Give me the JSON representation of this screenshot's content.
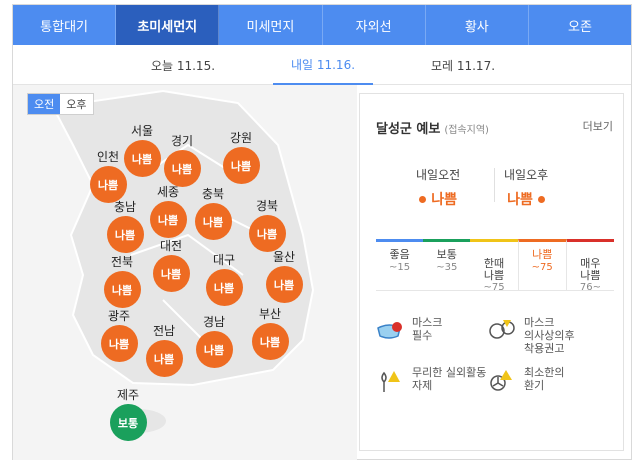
{
  "tabs": [
    "통합대기",
    "초미세먼지",
    "미세먼지",
    "자외선",
    "황사",
    "오존"
  ],
  "days": [
    "오늘 11.15.",
    "내일 11.16.",
    "모레 11.17."
  ],
  "map": {
    "ampm": [
      "오전",
      "오후"
    ],
    "regions": [
      {
        "name": "서울",
        "status": "나쁨"
      },
      {
        "name": "경기",
        "status": "나쁨"
      },
      {
        "name": "강원",
        "status": "나쁨"
      },
      {
        "name": "인천",
        "status": "나쁨"
      },
      {
        "name": "세종",
        "status": "나쁨"
      },
      {
        "name": "충북",
        "status": "나쁨"
      },
      {
        "name": "충남",
        "status": "나쁨"
      },
      {
        "name": "경북",
        "status": "나쁨"
      },
      {
        "name": "대전",
        "status": "나쁨"
      },
      {
        "name": "전북",
        "status": "나쁨"
      },
      {
        "name": "대구",
        "status": "나쁨"
      },
      {
        "name": "울산",
        "status": "나쁨"
      },
      {
        "name": "광주",
        "status": "나쁨"
      },
      {
        "name": "전남",
        "status": "나쁨"
      },
      {
        "name": "경남",
        "status": "나쁨"
      },
      {
        "name": "부산",
        "status": "나쁨"
      },
      {
        "name": "제주",
        "status": "보통"
      }
    ]
  },
  "forecast": {
    "title": "달성군 예보",
    "subtitle": "(접속지역)",
    "more": "더보기",
    "am_label": "내일오전",
    "am_value": "나쁨",
    "pm_label": "내일오후",
    "pm_value": "나쁨",
    "scale": [
      {
        "label": "좋음",
        "range": "~15",
        "color": "#4d8cf0"
      },
      {
        "label": "보통",
        "range": "~35",
        "color": "#1aa05c"
      },
      {
        "label": "한때\n나쁨",
        "range": "~75",
        "color": "#f0c418"
      },
      {
        "label": "나쁨",
        "range": "~75",
        "color": "#ee6b22"
      },
      {
        "label": "매우\n나쁨",
        "range": "76~",
        "color": "#d9302a"
      }
    ],
    "tips": [
      "마스크\n필수",
      "마스크\n의사상의후\n착용권고",
      "무리한 실외활동\n자제",
      "최소한의\n환기"
    ]
  },
  "colors": {
    "accent": "#4d8cf0",
    "bad": "#ee6b22",
    "normal": "#1aa05c"
  }
}
